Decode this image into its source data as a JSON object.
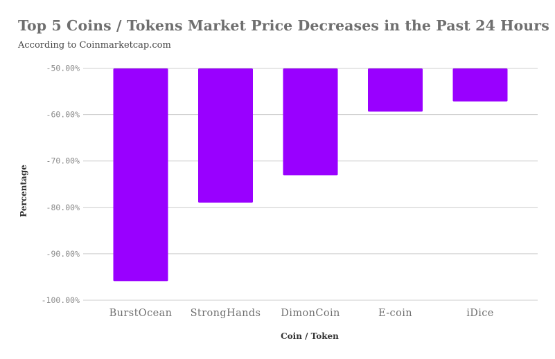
{
  "chart_data": {
    "type": "bar",
    "title": "Top 5 Coins / Tokens Market Price Decreases in the Past 24 Hours",
    "subtitle": "According to Coinmarketcap.com",
    "xlabel": "Coin / Token",
    "ylabel": "Percentage",
    "categories": [
      "BurstOcean",
      "StrongHands",
      "DimonCoin",
      "E-coin",
      "iDice"
    ],
    "values": [
      -95.8,
      -78.9,
      -73.0,
      -59.3,
      -57.1
    ],
    "ylim": [
      -100,
      -50
    ],
    "yticks": [
      -50,
      -60,
      -70,
      -80,
      -90,
      -100
    ],
    "ytick_labels": [
      "-50.00%",
      "-60.00%",
      "-70.00%",
      "-80.00%",
      "-90.00%",
      "-100.00%"
    ],
    "bar_color": "#9900ff",
    "grid": true,
    "legend": "none"
  }
}
